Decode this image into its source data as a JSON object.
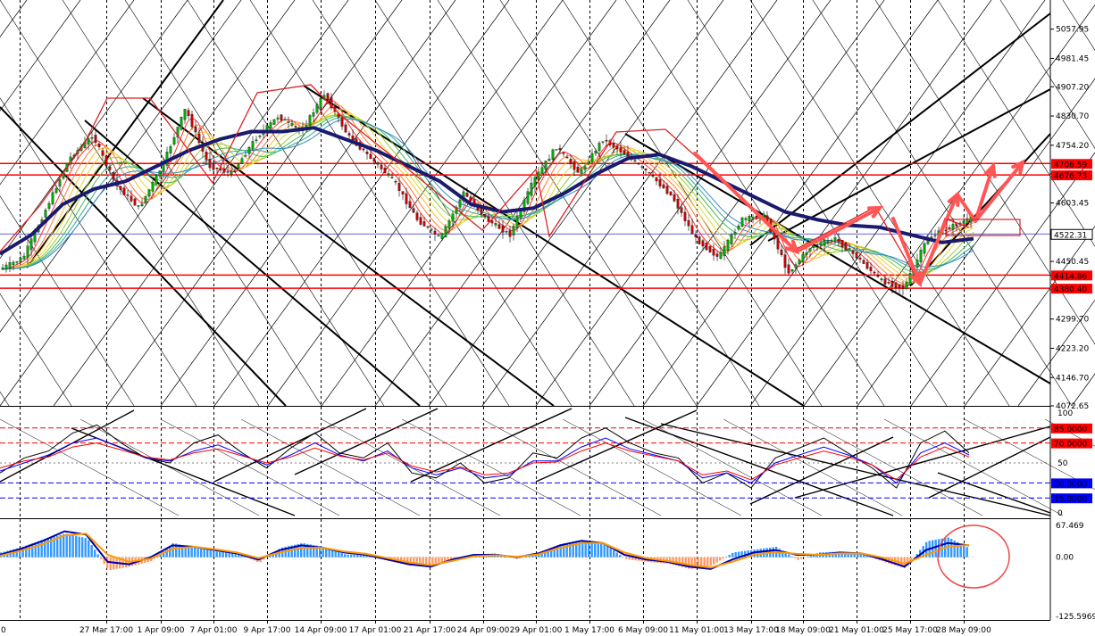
{
  "colors": {
    "background": "#ffffff",
    "axis": "#000000",
    "grid": "#000000",
    "level_line": "#ff0000",
    "current_price": "#3333cc",
    "ma_main": "#1a1a6e",
    "candle_up": "#00aa00",
    "candle_down": "#cc0000",
    "macd_hist_pos": "#3399ff",
    "macd_hist_neg": "#ff9966",
    "macd_line": "#0000aa",
    "signal_line": "#ff9900",
    "osc_line_1": "#000000",
    "osc_line_2": "#0000ff",
    "osc_line_3": "#ff0000",
    "osc_level_high": "#ff0000",
    "osc_level_low": "#0000ff",
    "annotation_arrow": "#ff5555"
  },
  "chart_data": [
    {
      "type": "candlestick",
      "panel": "price",
      "title": "",
      "xlabel": "",
      "ylabel": "",
      "ylim": [
        4072.65,
        5134.15
      ],
      "y_ticks": [
        "5057.95",
        "4981.45",
        "4907.20",
        "4830.70",
        "4754.20",
        "4679.95",
        "4603.45",
        "4526.95",
        "4450.45",
        "4376.20",
        "4299.70",
        "4223.20",
        "4146.70",
        "4072.65"
      ],
      "x_ticks": [
        "27 Mar 17:00",
        "1 Apr 09:00",
        "7 Apr 01:00",
        "9 Apr 17:00",
        "14 Apr 09:00",
        "17 Apr 01:00",
        "21 Apr 17:00",
        "24 Apr 09:00",
        "29 Apr 01:00",
        "1 May 17:00",
        "6 May 09:00",
        "11 May 01:00",
        "13 May 17:00",
        "18 May 09:00",
        "21 May 01:00",
        "25 May 17:00",
        "28 May 09:00"
      ],
      "x_partial_first_label": "0",
      "levels": [
        {
          "value": 4706.59,
          "label": "4706.59"
        },
        {
          "value": 4676.73,
          "label": "4676.73"
        },
        {
          "value": 4414.86,
          "label": "4414.86"
        },
        {
          "value": 4380.4,
          "label": "4380.40"
        }
      ],
      "current_price": {
        "value": 4522.31,
        "label": "4522.31"
      },
      "price_path": [
        4430,
        4460,
        4590,
        4720,
        4780,
        4650,
        4590,
        4700,
        4850,
        4700,
        4680,
        4770,
        4830,
        4790,
        4890,
        4780,
        4720,
        4660,
        4560,
        4510,
        4630,
        4560,
        4520,
        4660,
        4750,
        4680,
        4770,
        4730,
        4680,
        4620,
        4510,
        4460,
        4560,
        4570,
        4420,
        4490,
        4510,
        4460,
        4400,
        4380,
        4510,
        4540,
        4565
      ],
      "ma_path": [
        4470,
        4520,
        4600,
        4640,
        4660,
        4700,
        4740,
        4770,
        4790,
        4790,
        4800,
        4770,
        4740,
        4700,
        4660,
        4600,
        4580,
        4590,
        4630,
        4680,
        4720,
        4730,
        4700,
        4660,
        4620,
        4580,
        4560,
        4545,
        4540,
        4520,
        4500,
        4510
      ]
    },
    {
      "type": "line",
      "panel": "oscillator",
      "ylim": [
        0,
        100
      ],
      "y_ticks": [
        "100",
        "50",
        "0"
      ],
      "levels": [
        {
          "value": 85,
          "label": "85.0000",
          "color": "#ff0000"
        },
        {
          "value": 70,
          "label": "70.0000",
          "color": "#ff0000"
        },
        {
          "value": 30,
          "label": "30.0000",
          "color": "#0000ff"
        },
        {
          "value": 15,
          "label": "15.0000",
          "color": "#0000ff"
        }
      ],
      "series": [
        {
          "values": [
            40,
            55,
            62,
            80,
            88,
            70,
            55,
            50,
            70,
            78,
            60,
            45,
            65,
            80,
            60,
            55,
            70,
            40,
            35,
            50,
            30,
            35,
            60,
            55,
            75,
            85,
            70,
            60,
            55,
            30,
            40,
            25,
            55,
            65,
            75,
            60,
            45,
            25,
            70,
            82,
            60
          ]
        },
        {
          "values": [
            42,
            50,
            58,
            70,
            75,
            65,
            55,
            52,
            62,
            68,
            58,
            48,
            58,
            70,
            58,
            52,
            62,
            45,
            38,
            45,
            35,
            38,
            52,
            52,
            66,
            75,
            64,
            58,
            52,
            35,
            40,
            30,
            50,
            58,
            66,
            58,
            48,
            30,
            60,
            70,
            58
          ]
        },
        {
          "values": [
            45,
            52,
            56,
            66,
            70,
            63,
            56,
            53,
            60,
            64,
            57,
            50,
            56,
            65,
            57,
            53,
            60,
            47,
            41,
            46,
            38,
            40,
            50,
            51,
            62,
            70,
            62,
            57,
            52,
            38,
            42,
            33,
            48,
            55,
            62,
            56,
            48,
            33,
            56,
            66,
            56
          ]
        }
      ]
    },
    {
      "type": "line",
      "panel": "macd",
      "ylim": [
        -125.5969,
        67.469
      ],
      "y_ticks": [
        "67.469",
        "0.00",
        "-125.5969"
      ],
      "histogram": [
        10,
        22,
        38,
        50,
        40,
        -28,
        -20,
        -8,
        30,
        20,
        12,
        8,
        -12,
        20,
        30,
        22,
        6,
        4,
        -8,
        -18,
        -14,
        -6,
        6,
        8,
        -4,
        10,
        28,
        36,
        30,
        -4,
        -10,
        -14,
        -25,
        -18,
        10,
        16,
        22,
        -6,
        10,
        12,
        6,
        -10,
        -24,
        34,
        42,
        18
      ],
      "series": [
        {
          "name": "",
          "values": [
            5,
            18,
            35,
            55,
            48,
            -10,
            -15,
            0,
            25,
            22,
            15,
            8,
            -5,
            15,
            25,
            20,
            10,
            5,
            -5,
            -15,
            -20,
            -5,
            5,
            5,
            0,
            8,
            25,
            35,
            30,
            5,
            -5,
            -10,
            -20,
            -25,
            -5,
            10,
            15,
            5,
            5,
            10,
            8,
            -5,
            -20,
            15,
            30,
            25
          ]
        },
        {
          "name": "",
          "values": [
            3,
            14,
            28,
            46,
            50,
            5,
            -10,
            -3,
            18,
            22,
            17,
            10,
            -2,
            10,
            20,
            20,
            12,
            7,
            -2,
            -11,
            -17,
            -8,
            2,
            4,
            1,
            6,
            20,
            30,
            30,
            10,
            -2,
            -8,
            -16,
            -22,
            -10,
            5,
            11,
            7,
            5,
            8,
            8,
            -1,
            -14,
            5,
            22,
            26
          ]
        }
      ]
    }
  ]
}
